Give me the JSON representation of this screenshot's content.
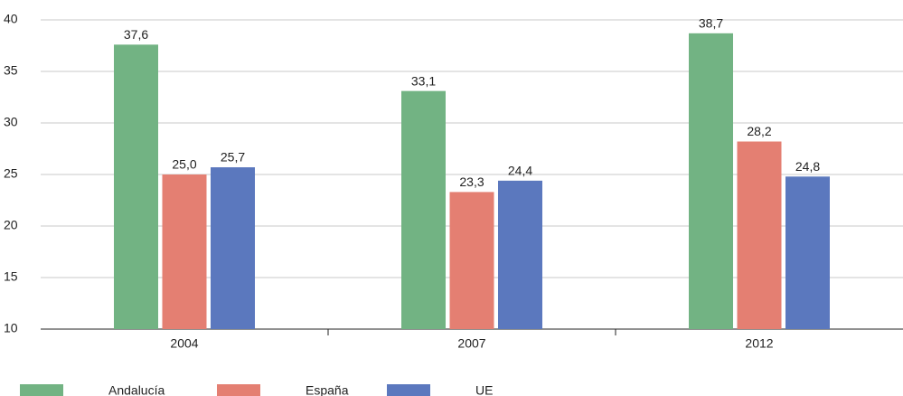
{
  "chart_data": {
    "type": "bar",
    "categories": [
      "2004",
      "2007",
      "2012"
    ],
    "series": [
      {
        "name": "Andalucía",
        "color": "#72b383",
        "values": [
          37.6,
          33.1,
          38.7
        ],
        "value_labels": [
          "37,6",
          "33,1",
          "38,7"
        ]
      },
      {
        "name": "España",
        "color": "#e47f72",
        "values": [
          25.0,
          23.3,
          28.2
        ],
        "value_labels": [
          "25,0",
          "23,3",
          "28,2"
        ]
      },
      {
        "name": "UE",
        "color": "#5b78be",
        "values": [
          25.7,
          24.4,
          24.8
        ],
        "value_labels": [
          "25,7",
          "24,4",
          "24,8"
        ]
      }
    ],
    "ylim": [
      10,
      40
    ],
    "yticks": [
      10,
      15,
      20,
      25,
      30,
      35,
      40
    ],
    "grid": true,
    "legend": "bottom"
  }
}
